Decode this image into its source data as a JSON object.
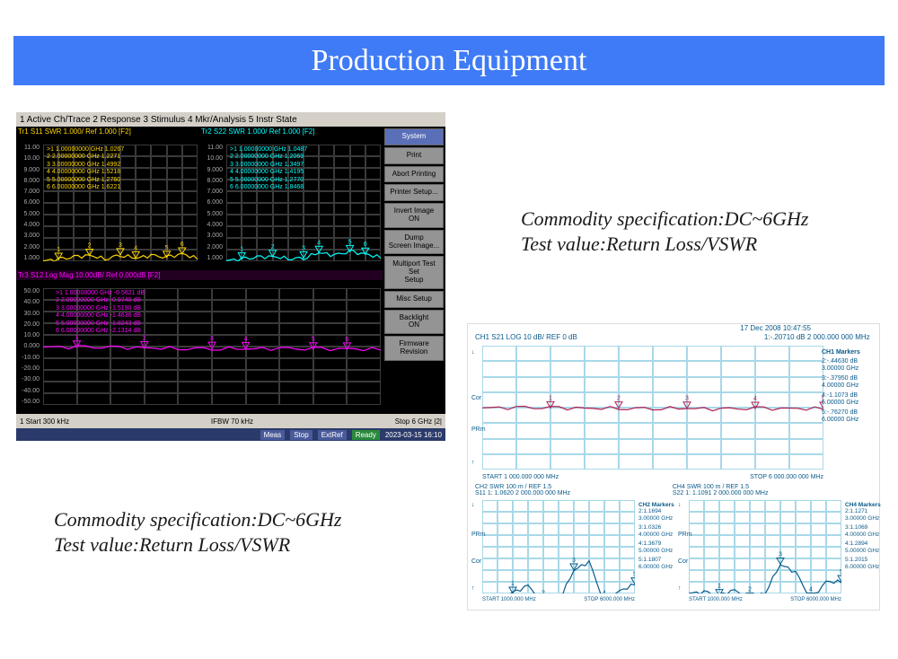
{
  "title": "Production Equipment",
  "title_bg": "#3f7bf7",
  "title_color": "#ffffff",
  "title_fontsize": 34,
  "caption1": {
    "line1": "Commodity specification:DC~6GHz",
    "line2": "Test value:Return Loss/VSWR"
  },
  "caption2": {
    "line1": "Commodity specification:DC~6GHz",
    "line2": "Test value:Return Loss/VSWR"
  },
  "analyzer1": {
    "menubar": "1 Active Ch/Trace   2 Response   3 Stimulus   4 Mkr/Analysis   5 Instr State",
    "plot_tl": {
      "header": "Tr1 S11 SWR  1.000/ Ref 1.000 [F2]",
      "header_color": "#ffd700",
      "yticks": [
        "11.00",
        "10.00",
        "9.000",
        "8.000",
        "7.000",
        "6.000",
        "5.000",
        "4.000",
        "3.000",
        "2.000",
        "1.000"
      ],
      "trace_color": "#ffd700",
      "trace_y_at_x": [
        1.03,
        1.15,
        1.35,
        1.5,
        1.22,
        1.55,
        1.28,
        1.48,
        1.32,
        1.62,
        1.25
      ],
      "markers": [
        {
          "n": ">1",
          "f": "1.00000000 GHz",
          "v": "1.0267"
        },
        {
          "n": " 2",
          "f": "2.00000000 GHz",
          "v": "1.2271"
        },
        {
          "n": " 3",
          "f": "3.00000000 GHz",
          "v": "1.4992"
        },
        {
          "n": " 4",
          "f": "4.00000000 GHz",
          "v": "1.5218"
        },
        {
          "n": " 5",
          "f": "5.00000000 GHz",
          "v": "1.2760"
        },
        {
          "n": " 6",
          "f": "6.00000000 GHz",
          "v": "1.6221"
        }
      ]
    },
    "plot_tr": {
      "header": "Tr2 S22 SWR  1.000/ Ref 1.000 [F2]",
      "header_color": "#00ffff",
      "yticks": [
        "11.00",
        "10.00",
        "9.000",
        "8.000",
        "7.000",
        "6.000",
        "5.000",
        "4.000",
        "3.000",
        "2.000",
        "1.000"
      ],
      "trace_color": "#00ffff",
      "trace_y_at_x": [
        1.05,
        1.18,
        1.32,
        1.4,
        1.25,
        1.28,
        1.75,
        1.5,
        1.82,
        1.6,
        1.35
      ],
      "markers": [
        {
          "n": ">1",
          "f": "1.00000000 GHz",
          "v": "1.0487"
        },
        {
          "n": " 2",
          "f": "2.00000000 GHz",
          "v": "1.2069"
        },
        {
          "n": " 3",
          "f": "3.00000000 GHz",
          "v": "1.3497"
        },
        {
          "n": " 4",
          "f": "4.00000000 GHz",
          "v": "1.4195"
        },
        {
          "n": " 5",
          "f": "5.00000000 GHz",
          "v": "1.2770"
        },
        {
          "n": " 6",
          "f": "6.00000000 GHz",
          "v": "1.8468"
        }
      ]
    },
    "plot_b": {
      "header": "Tr3  S12 Log Mag 10.00dB/ Ref 0.000dB [F2]",
      "header_color": "#ff00ff",
      "yticks": [
        "50.00",
        "40.00",
        "30.00",
        "20.00",
        "10.00",
        "0.000",
        "-10.00",
        "-20.00",
        "-30.00",
        "-40.00",
        "-50.00"
      ],
      "trace_color": "#ff00ff",
      "trace_y_at_x": [
        -0.4,
        -0.6,
        -0.9,
        -1.2,
        -1.5,
        -1.6,
        -1.8,
        -1.9,
        -2.1,
        -2.2,
        -2.3
      ],
      "markers": [
        {
          "n": ">1",
          "f": "1.00000000 GHz",
          "v": "-0.5621 dB"
        },
        {
          "n": " 2",
          "f": "2.00000000 GHz",
          "v": "-0.9740 dB"
        },
        {
          "n": " 3",
          "f": "3.00000000 GHz",
          "v": "-1.5190 dB"
        },
        {
          "n": " 4",
          "f": "4.00000000 GHz",
          "v": "-1.4636 dB"
        },
        {
          "n": " 5",
          "f": "5.00000000 GHz",
          "v": "-1.8243 dB"
        },
        {
          "n": " 6",
          "f": "6.00000000 GHz",
          "v": "-2.1314 dB"
        }
      ]
    },
    "sidebar": [
      "System",
      "Print",
      "Abort Printing",
      "Printer Setup...",
      "Invert Image\nON",
      "Dump\nScreen Image...",
      "Multiport Test Set\nSetup",
      "Misc Setup",
      "Backlight\nON",
      "Firmware\nRevision"
    ],
    "sidebar_blue_idx": 0,
    "status": {
      "left": "1  Start 300 kHz",
      "center": "IFBW 70 kHz",
      "right": "Stop 6 GHz  |2|"
    },
    "status2": {
      "tags": [
        "Meas",
        "Stop",
        "ExtRef",
        "Ready"
      ],
      "datetime": "2023-03-15 16:10"
    }
  },
  "analyzer2": {
    "datetime": "17 Dec 2008  10:47:55",
    "top": {
      "left_hdr": "CH1  S21    LOG     10 dB/ REF 0 dB",
      "right_hdr": "1:-.20710 dB   2 000.000 000 MHz",
      "trace_color": "#b02050",
      "plot_bg": "#ffffff",
      "grid_color": "#a8d8e8",
      "annot": [
        "↓",
        "Cor",
        "PRm",
        "↑"
      ],
      "trace_y_at_x": [
        -0.18,
        -0.2,
        -0.25,
        -0.44,
        -0.36,
        -0.38,
        -0.4,
        -1.1,
        -0.55,
        -0.76,
        -0.6
      ],
      "xlabel_left": "START 1 000.000 000 MHz",
      "xlabel_right": "STOP 6 000.000 000 MHz",
      "markers_title": "CH1 Markers",
      "markers": [
        {
          "n": "2:",
          "v": "-.44630 dB",
          "f": "3.00000 GHz"
        },
        {
          "n": "3:",
          "v": "-.37950 dB",
          "f": "4.00000 GHz"
        },
        {
          "n": "4:",
          "v": "-1.1073 dB",
          "f": "5.00000 GHz"
        },
        {
          "n": "5:",
          "v": "-.76270 dB",
          "f": "6.00000 GHz"
        }
      ]
    },
    "bot_hdr_left": "CH2  SWR   100 m / REF 1.5\nS11        1: 1.0620     2 000.000 000 MHz",
    "bot_hdr_right": "CH4  SWR   100 m / REF 1.5\nS22        1: 1.1091     2 000.000 000 MHz",
    "bot_left": {
      "trace_color": "#0a5a8a",
      "trace_y_at_x": [
        1.05,
        1.06,
        1.1,
        1.17,
        1.02,
        1.03,
        1.3,
        1.37,
        1.02,
        1.12,
        1.18
      ],
      "annot": [
        "↓",
        "PRm",
        "Cor",
        "↑"
      ],
      "xlabel_left": "START 1000.000 MHz",
      "xlabel_right": "STOP 6000.000 MHz",
      "markers_title": "CH2 Markers",
      "markers": [
        {
          "n": "2:",
          "v": "1.1694",
          "f": "3.00000 GHz"
        },
        {
          "n": "3:",
          "v": "1.0326",
          "f": "4.00000 GHz"
        },
        {
          "n": "4:",
          "v": "1.3679",
          "f": "5.00000 GHz"
        },
        {
          "n": "5:",
          "v": "1.1807",
          "f": "6.00000 GHz"
        }
      ]
    },
    "bot_right": {
      "trace_color": "#0a5a8a",
      "trace_y_at_x": [
        1.1,
        1.11,
        1.08,
        1.13,
        1.05,
        1.11,
        1.35,
        1.28,
        1.05,
        1.2,
        1.2
      ],
      "annot": [
        "↓",
        "PRm",
        "Cor",
        "↑"
      ],
      "xlabel_left": "START 1000.000 MHz",
      "xlabel_right": "STOP 6000.000 MHz",
      "markers_title": "CH4 Markers",
      "markers": [
        {
          "n": "2:",
          "v": "1.1271",
          "f": "3.00000 GHz"
        },
        {
          "n": "3:",
          "v": "1.1069",
          "f": "4.00000 GHz"
        },
        {
          "n": "4:",
          "v": "1.2894",
          "f": "5.00000 GHz"
        },
        {
          "n": "5:",
          "v": "1.2015",
          "f": "6.00000 GHz"
        }
      ]
    }
  }
}
